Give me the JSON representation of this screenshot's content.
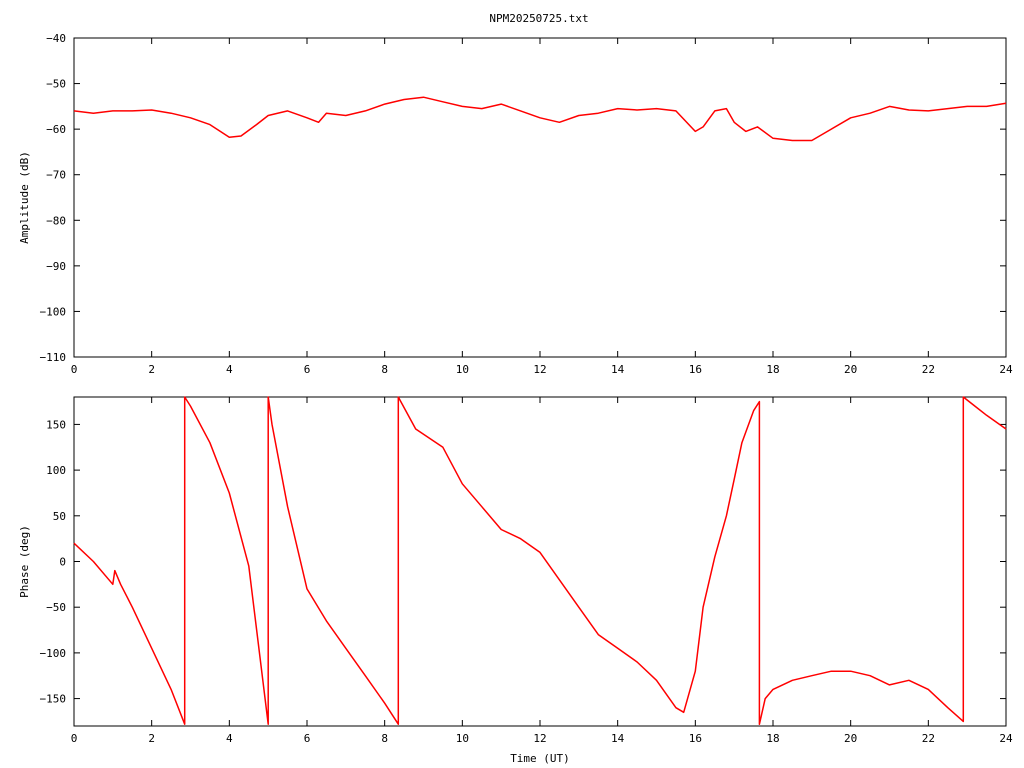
{
  "title": "NPM20250725.txt",
  "colors": {
    "series": "#ff0000",
    "axis": "#000000",
    "background": "#ffffff"
  },
  "chart_data": [
    {
      "type": "line",
      "xlabel": "",
      "ylabel": "Amplitude (dB)",
      "xlim": [
        0,
        24
      ],
      "ylim": [
        -110,
        -40
      ],
      "xticks": [
        0,
        2,
        4,
        6,
        8,
        10,
        12,
        14,
        16,
        18,
        20,
        22,
        24
      ],
      "yticks": [
        -40,
        -50,
        -60,
        -70,
        -80,
        -90,
        -100,
        -110
      ],
      "grid": false,
      "series": [
        {
          "x": [
            0,
            0.5,
            1,
            1.5,
            2,
            2.5,
            3,
            3.5,
            4,
            4.3,
            4.7,
            5,
            5.5,
            6,
            6.3,
            6.5,
            7,
            7.5,
            8,
            8.5,
            9,
            9.5,
            10,
            10.5,
            11,
            11.5,
            12,
            12.5,
            13,
            13.5,
            14,
            14.5,
            15,
            15.5,
            16,
            16.2,
            16.5,
            16.8,
            17,
            17.3,
            17.6,
            18,
            18.5,
            19,
            19.5,
            20,
            20.5,
            21,
            21.5,
            22,
            22.5,
            23,
            23.5,
            24
          ],
          "values": [
            -56,
            -56.5,
            -56,
            -56,
            -55.8,
            -56.5,
            -57.5,
            -59,
            -61.8,
            -61.5,
            -59,
            -57,
            -56,
            -57.5,
            -58.5,
            -56.5,
            -57,
            -56,
            -54.5,
            -53.5,
            -53,
            -54,
            -55,
            -55.5,
            -54.5,
            -56,
            -57.5,
            -58.5,
            -57,
            -56.5,
            -55.5,
            -55.8,
            -55.5,
            -56,
            -60.5,
            -59.5,
            -56,
            -55.5,
            -58.5,
            -60.5,
            -59.5,
            -62,
            -62.5,
            -62.5,
            -60,
            -57.5,
            -56.5,
            -55,
            -55.8,
            -56,
            -55.5,
            -55,
            -55,
            -54.3
          ]
        }
      ]
    },
    {
      "type": "line",
      "xlabel": "Time (UT)",
      "ylabel": "Phase (deg)",
      "xlim": [
        0,
        24
      ],
      "ylim": [
        -180,
        180
      ],
      "xticks": [
        0,
        2,
        4,
        6,
        8,
        10,
        12,
        14,
        16,
        18,
        20,
        22,
        24
      ],
      "yticks": [
        150,
        100,
        50,
        0,
        -50,
        -100,
        -150
      ],
      "grid": false,
      "series": [
        {
          "x": [
            0,
            0.5,
            1,
            1.05,
            1.2,
            1.5,
            2,
            2.5,
            2.85,
            2.85,
            3,
            3.5,
            4,
            4.5,
            5,
            5,
            5.1,
            5.5,
            6,
            6.5,
            7,
            7.5,
            8,
            8.35,
            8.35,
            8.8,
            9.5,
            10,
            10.5,
            11,
            11.5,
            12,
            12.5,
            13,
            13.5,
            14,
            14.5,
            15,
            15.5,
            15.7,
            16,
            16.2,
            16.5,
            16.8,
            17,
            17.2,
            17.5,
            17.65,
            17.65,
            17.8,
            18,
            18.5,
            19,
            19.5,
            20,
            20.5,
            21,
            21.5,
            22,
            22.5,
            22.9,
            22.9,
            23.2,
            23.5,
            24
          ],
          "values": [
            20,
            0,
            -25,
            -10,
            -25,
            -50,
            -95,
            -140,
            -178,
            180,
            170,
            130,
            75,
            -5,
            -178,
            180,
            150,
            60,
            -30,
            -65,
            -95,
            -125,
            -155,
            -178,
            180,
            145,
            125,
            85,
            60,
            35,
            25,
            10,
            -20,
            -50,
            -80,
            -95,
            -110,
            -130,
            -160,
            -165,
            -120,
            -50,
            5,
            50,
            90,
            130,
            165,
            175,
            -178,
            -150,
            -140,
            -130,
            -125,
            -120,
            -120,
            -125,
            -135,
            -130,
            -140,
            -160,
            -175,
            180,
            170,
            160,
            145
          ]
        }
      ]
    }
  ]
}
